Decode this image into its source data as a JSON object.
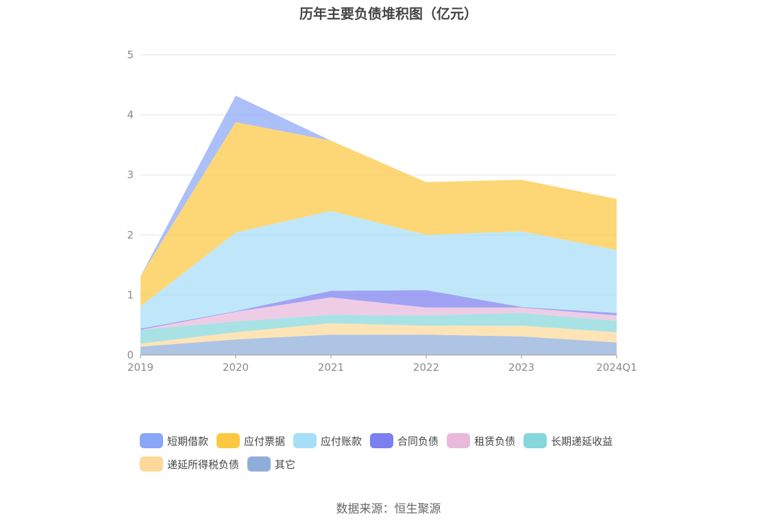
{
  "title": "历年主要负债堆积图（亿元）",
  "source": "数据来源：恒生聚源",
  "chart_data": {
    "type": "area",
    "stacked": true,
    "title": "历年主要负债堆积图（亿元）",
    "xlabel": "",
    "ylabel": "",
    "ylim": [
      0,
      5
    ],
    "yticks": [
      "0",
      "1",
      "2",
      "3",
      "4",
      "5"
    ],
    "categories": [
      "2019",
      "2020",
      "2021",
      "2022",
      "2023",
      "2024Q1"
    ],
    "grid": true,
    "legend_position": "bottom",
    "series": [
      {
        "name": "其它",
        "color": "#8fadd9",
        "values": [
          0.14,
          0.26,
          0.34,
          0.34,
          0.31,
          0.21
        ]
      },
      {
        "name": "递延所得税负债",
        "color": "#fcd99a",
        "values": [
          0.05,
          0.12,
          0.19,
          0.15,
          0.18,
          0.17
        ]
      },
      {
        "name": "长期递延收益",
        "color": "#86d7db",
        "values": [
          0.23,
          0.18,
          0.14,
          0.17,
          0.21,
          0.19
        ]
      },
      {
        "name": "租赁负债",
        "color": "#e9b9dc",
        "values": [
          0.0,
          0.16,
          0.29,
          0.13,
          0.09,
          0.09
        ]
      },
      {
        "name": "合同负债",
        "color": "#7b7ff0",
        "values": [
          0.02,
          0.01,
          0.11,
          0.29,
          0.01,
          0.04
        ]
      },
      {
        "name": "应付账款",
        "color": "#a6def7",
        "values": [
          0.37,
          1.31,
          1.33,
          0.92,
          1.26,
          1.05
        ]
      },
      {
        "name": "应付票据",
        "color": "#fcc841",
        "values": [
          0.5,
          1.84,
          1.17,
          0.88,
          0.86,
          0.85
        ]
      },
      {
        "name": "短期借款",
        "color": "#8aa6f7",
        "values": [
          0.0,
          0.44,
          0.0,
          0.0,
          0.0,
          0.0
        ]
      }
    ]
  },
  "legend": [
    {
      "name": "短期借款",
      "color": "#8aa6f7"
    },
    {
      "name": "应付票据",
      "color": "#fcc841"
    },
    {
      "name": "应付账款",
      "color": "#a6def7"
    },
    {
      "name": "合同负债",
      "color": "#7b7ff0"
    },
    {
      "name": "租赁负债",
      "color": "#e9b9dc"
    },
    {
      "name": "长期递延收益",
      "color": "#86d7db"
    },
    {
      "name": "递延所得税负债",
      "color": "#fcd99a"
    },
    {
      "name": "其它",
      "color": "#8fadd9"
    }
  ]
}
